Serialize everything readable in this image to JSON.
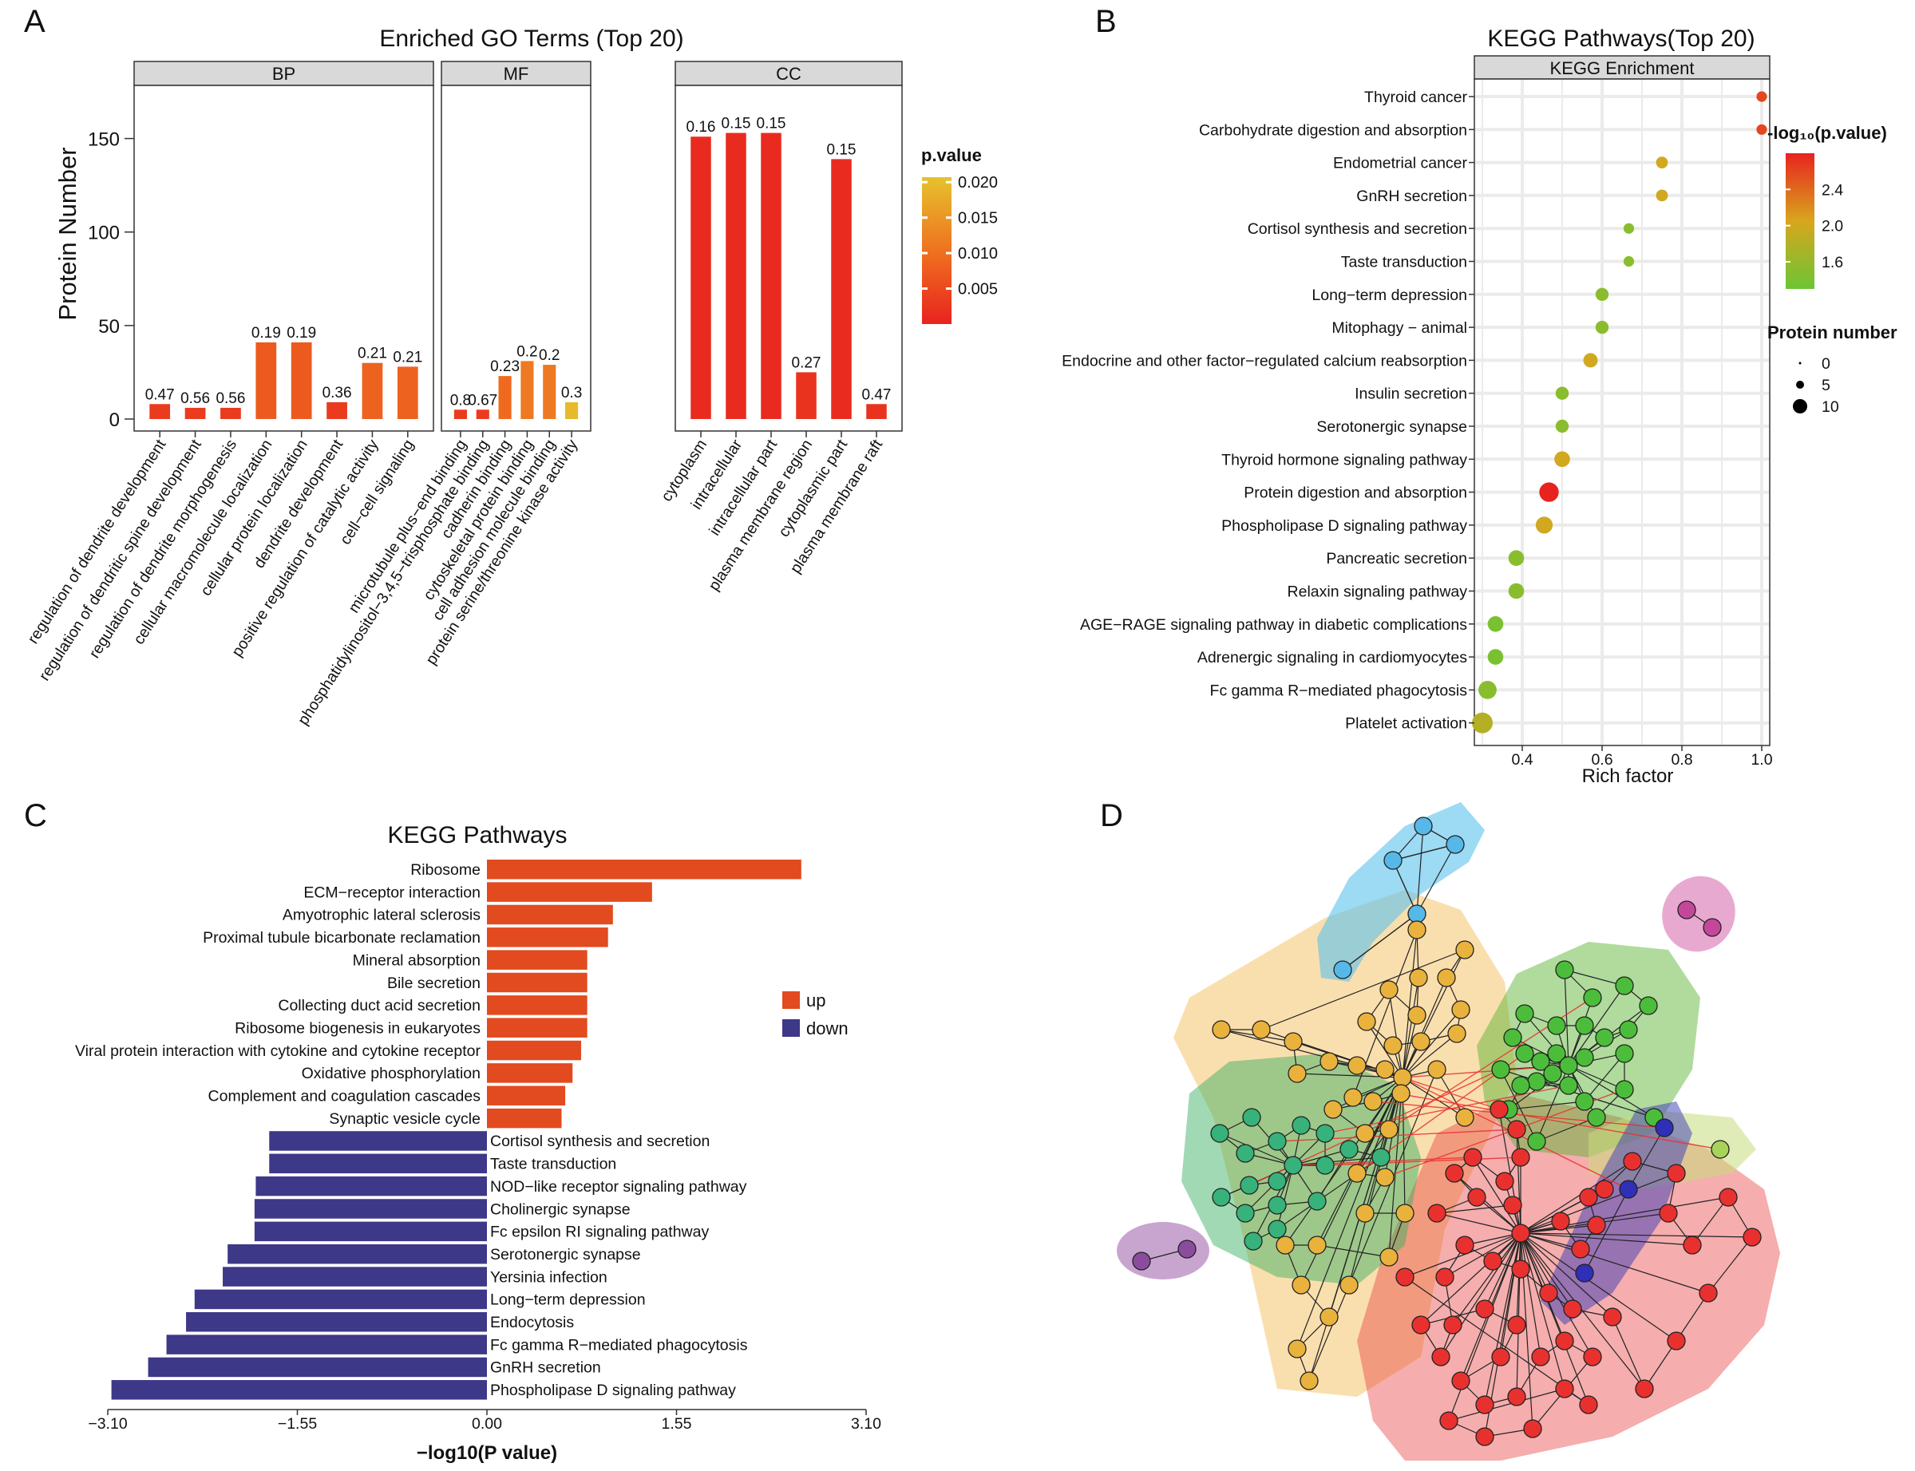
{
  "colors": {
    "up": "#e24a1f",
    "down": "#3e3888",
    "strip_bg": "#d9d9d9",
    "grid": "#ebebeb",
    "pv_low": "#e8231f",
    "pv_high": "#e6c22e"
  },
  "chart_data": [
    {
      "panel": "A",
      "type": "bar",
      "title": "Enriched GO Terms (Top 20)",
      "ylabel": "Protein Number",
      "ylim": [
        0,
        175
      ],
      "yticks": [
        "0",
        "50",
        "100",
        "150"
      ],
      "legend_title": "p.value",
      "legend_ticks": [
        "0.020",
        "0.015",
        "0.010",
        "0.005"
      ],
      "facets": [
        {
          "name": "BP",
          "categories": [
            "regulation of dendrite development",
            "regulation of dendritic spine development",
            "regulation of dendrite morphogenesis",
            "cellular macromolecule localization",
            "cellular protein localization",
            "dendrite development",
            "positive regulation of catalytic activity",
            "cell−cell signaling"
          ],
          "values": [
            8,
            6,
            6,
            41,
            41,
            9,
            30,
            28
          ],
          "labels": [
            "0.47",
            "0.56",
            "0.56",
            "0.19",
            "0.19",
            "0.36",
            "0.21",
            "0.21"
          ],
          "pvalues": [
            0.003,
            0.003,
            0.003,
            0.007,
            0.007,
            0.003,
            0.008,
            0.008
          ]
        },
        {
          "name": "MF",
          "categories": [
            "microtubule plus−end binding",
            "phosphatidylinositol−3,4,5−trisphosphate binding",
            "cadherin binding",
            "cytoskeletal protein binding",
            "cell adhesion molecule binding",
            "protein serine/threonine kinase activity"
          ],
          "values": [
            5,
            5,
            23,
            31,
            29,
            9
          ],
          "labels": [
            "0.8",
            "0.67",
            "0.23",
            "0.2",
            "0.2",
            "0.3"
          ],
          "pvalues": [
            0.003,
            0.003,
            0.009,
            0.011,
            0.011,
            0.019
          ]
        },
        {
          "name": "CC",
          "categories": [
            "cytoplasm",
            "intracellular",
            "intracellular part",
            "plasma membrane region",
            "cytoplasmic part",
            "plasma membrane raft"
          ],
          "values": [
            151,
            153,
            153,
            25,
            139,
            8
          ],
          "labels": [
            "0.16",
            "0.15",
            "0.15",
            "0.27",
            "0.15",
            "0.47"
          ],
          "pvalues": [
            0.001,
            0.001,
            0.001,
            0.002,
            0.001,
            0.002
          ]
        }
      ]
    },
    {
      "panel": "B",
      "type": "scatter",
      "title": "KEGG Pathways(Top 20)",
      "strip": "KEGG Enrichment",
      "xlabel": "Rich factor",
      "xlim": [
        0.28,
        1.02
      ],
      "xticks": [
        "0.4",
        "0.6",
        "0.8",
        "1.0"
      ],
      "color_legend_title": "-log₁₀(p.value)",
      "color_legend_ticks": [
        "2.4",
        "2.0",
        "1.6"
      ],
      "size_legend_title": "Protein number",
      "size_legend_ticks": [
        "0",
        "5",
        "10"
      ],
      "categories": [
        "Thyroid cancer",
        "Carbohydrate digestion and absorption",
        "Endometrial cancer",
        "GnRH secretion",
        "Cortisol synthesis and secretion",
        "Taste transduction",
        "Long−term depression",
        "Mitophagy − animal",
        "Endocrine and other factor−regulated calcium reabsorption",
        "Insulin secretion",
        "Serotonergic synapse",
        "Thyroid hormone signaling pathway",
        "Protein digestion and absorption",
        "Phospholipase D signaling pathway",
        "Pancreatic secretion",
        "Relaxin signaling pathway",
        "AGE−RAGE signaling pathway in diabetic complications",
        "Adrenergic signaling in cardiomyocytes",
        "Fc gamma R−mediated phagocytosis",
        "Platelet activation"
      ],
      "x": [
        1.0,
        1.0,
        0.75,
        0.75,
        0.667,
        0.667,
        0.6,
        0.6,
        0.571,
        0.5,
        0.5,
        0.5,
        0.467,
        0.455,
        0.385,
        0.385,
        0.333,
        0.333,
        0.313,
        0.3
      ],
      "neglog10p": [
        2.6,
        2.6,
        2.0,
        2.0,
        1.5,
        1.5,
        1.5,
        1.5,
        2.0,
        1.5,
        1.5,
        2.0,
        2.8,
        2.0,
        1.5,
        1.5,
        1.4,
        1.4,
        1.5,
        1.8
      ],
      "protein_number": [
        2,
        2,
        3,
        3,
        2,
        2,
        4,
        4,
        5,
        4,
        4,
        6,
        9,
        7,
        6,
        6,
        6,
        6,
        8,
        10
      ]
    },
    {
      "panel": "C",
      "type": "bar",
      "orientation": "horizontal",
      "title": "KEGG Pathways",
      "xlabel": "−log10(P value)",
      "xlim": [
        -3.1,
        3.1
      ],
      "xticks": [
        "−3.10",
        "−1.55",
        "0.00",
        "1.55",
        "3.10"
      ],
      "legend": [
        "up",
        "down"
      ],
      "series": [
        {
          "name": "up",
          "categories": [
            "Ribosome",
            "ECM−receptor interaction",
            "Amyotrophic lateral sclerosis",
            "Proximal tubule bicarbonate reclamation",
            "Mineral absorption",
            "Bile secretion",
            "Collecting duct acid secretion",
            "Ribosome biogenesis in eukaryotes",
            "Viral protein interaction with cytokine and cytokine receptor",
            "Oxidative phosphorylation",
            "Complement and coagulation cascades",
            "Synaptic vesicle cycle"
          ],
          "values": [
            2.57,
            1.35,
            1.03,
            0.99,
            0.82,
            0.82,
            0.82,
            0.82,
            0.77,
            0.7,
            0.64,
            0.61
          ]
        },
        {
          "name": "down",
          "categories": [
            "Cortisol synthesis and secretion",
            "Taste transduction",
            "NOD−like receptor signaling pathway",
            "Cholinergic synapse",
            "Fc epsilon RI signaling pathway",
            "Serotonergic synapse",
            "Yersinia infection",
            "Long−term depression",
            "Endocytosis",
            "Fc gamma R−mediated phagocytosis",
            "GnRH secretion",
            "Phospholipase D signaling pathway"
          ],
          "values": [
            -1.78,
            -1.78,
            -1.89,
            -1.9,
            -1.9,
            -2.12,
            -2.16,
            -2.39,
            -2.46,
            -2.62,
            -2.77,
            -3.07
          ]
        }
      ]
    },
    {
      "panel": "D",
      "type": "network",
      "clusters": [
        "yellow",
        "green",
        "light-green",
        "red",
        "blue",
        "light-blue",
        "purple",
        "pink"
      ]
    }
  ],
  "panel_labels": {
    "a": "A",
    "b": "B",
    "c": "C",
    "d": "D"
  }
}
